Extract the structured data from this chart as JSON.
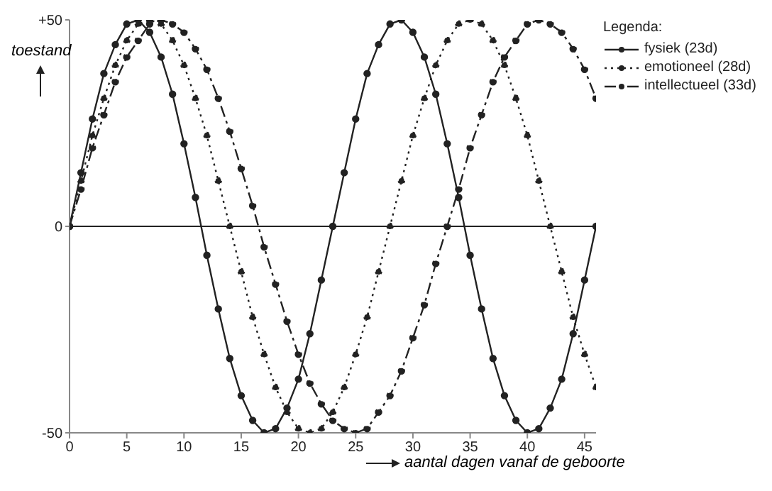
{
  "chart_data": {
    "type": "line",
    "xlabel": "aantal dagen vanaf de geboorte",
    "ylabel": "toestand",
    "legend_title": "Legenda:",
    "legend": "top right",
    "marker": "circle",
    "x": [
      0,
      1,
      2,
      3,
      4,
      5,
      6,
      7,
      8,
      9,
      10,
      11,
      12,
      13,
      14,
      15,
      16,
      17,
      18,
      19,
      20,
      21,
      22,
      23,
      24,
      25,
      26,
      27,
      28,
      29,
      30,
      31,
      32,
      33,
      34,
      35,
      36,
      37,
      38,
      39,
      40,
      41,
      42,
      43,
      44,
      45,
      46
    ],
    "xlim": [
      0,
      46
    ],
    "xticks": [
      0,
      5,
      10,
      15,
      20,
      25,
      30,
      35,
      40,
      45
    ],
    "ylim": [
      -50,
      50
    ],
    "yticks": [
      -50,
      0,
      {
        "value": 50,
        "label": "+50"
      }
    ],
    "ref_lines": [
      {
        "axis": "y",
        "value": 0,
        "color": "#222222",
        "line_style": "solid"
      }
    ],
    "series": [
      {
        "name": "fysiek (23d)",
        "color": "#222222",
        "line_style": "solid",
        "values": [
          0,
          13,
          26,
          37,
          44,
          49,
          50,
          47,
          41,
          32,
          20,
          7,
          -7,
          -20,
          -32,
          -41,
          -47,
          -50,
          -49,
          -44,
          -37,
          -26,
          -13,
          0,
          13,
          26,
          37,
          44,
          49,
          50,
          47,
          41,
          32,
          20,
          7,
          -7,
          -20,
          -32,
          -41,
          -47,
          -50,
          -49,
          -44,
          -37,
          -26,
          -13,
          0
        ]
      },
      {
        "name": "emotioneel (28d)",
        "color": "#222222",
        "line_style": "dotted",
        "values": [
          0,
          11,
          22,
          31,
          39,
          45,
          49,
          50,
          49,
          45,
          39,
          31,
          22,
          11,
          0,
          -11,
          -22,
          -31,
          -39,
          -45,
          -49,
          -50,
          -49,
          -45,
          -39,
          -31,
          -22,
          -11,
          0,
          11,
          22,
          31,
          39,
          45,
          49,
          50,
          49,
          45,
          39,
          31,
          22,
          11,
          0,
          -11,
          -22,
          -31,
          -39
        ]
      },
      {
        "name": "intellectueel (33d)",
        "color": "#222222",
        "line_style": "dashed",
        "values": [
          0,
          9,
          19,
          27,
          35,
          41,
          45,
          49,
          50,
          49,
          47,
          43,
          38,
          31,
          23,
          14,
          5,
          -5,
          -14,
          -23,
          -31,
          -38,
          -43,
          -47,
          -49,
          -50,
          -49,
          -45,
          -41,
          -35,
          -27,
          -19,
          -9,
          0,
          9,
          19,
          27,
          35,
          41,
          45,
          49,
          50,
          49,
          47,
          43,
          38,
          31
        ]
      }
    ]
  }
}
